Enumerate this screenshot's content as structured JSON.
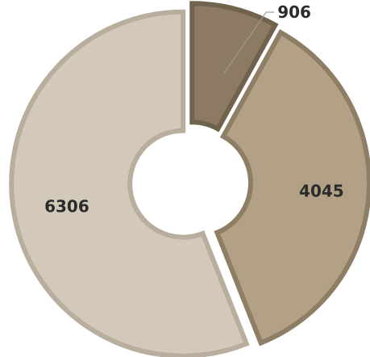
{
  "chart_data": {
    "type": "pie",
    "variant": "donut",
    "start_angle": "12 o'clock",
    "direction": "clockwise",
    "slices": [
      {
        "value": 906,
        "label": "906",
        "fill": "#8c7b62",
        "stroke": "#70624d"
      },
      {
        "value": 4045,
        "label": "4045",
        "fill": "#b2a186",
        "stroke": "#8e7e66"
      },
      {
        "value": 6306,
        "label": "6306",
        "fill": "#d2c9bb",
        "stroke": "#b9ae9d"
      }
    ]
  }
}
